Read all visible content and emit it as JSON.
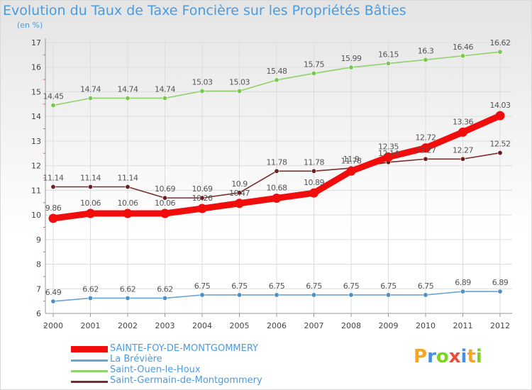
{
  "header": {
    "title": "Evolution du Taux de Taxe Foncière sur les Propriétés Bâties",
    "unit": "(en %)"
  },
  "logo": {
    "letters": [
      "P",
      "r",
      "o",
      "x",
      "i",
      "t",
      "i"
    ],
    "colors": [
      "#f5a623",
      "#4a90e2",
      "#7ed321",
      "#e94e3c",
      "#4a90e2",
      "#f5a623",
      "#7ed321"
    ]
  },
  "chart_data": {
    "type": "line",
    "title": "Evolution du Taux de Taxe Foncière sur les Propriétés Bâties",
    "ylabel": "(en %)",
    "xlabel": "",
    "x": [
      "2000",
      "2001",
      "2002",
      "2003",
      "2004",
      "2005",
      "2006",
      "2007",
      "2008",
      "2009",
      "2010",
      "2011",
      "2012"
    ],
    "ylim": [
      6,
      17
    ],
    "yticks": [
      6,
      7,
      8,
      9,
      10,
      11,
      12,
      13,
      14,
      15,
      16,
      17
    ],
    "grid": true,
    "legend_position": "bottom-left",
    "series": [
      {
        "name": "Saint-Ouen-le-Houx",
        "color": "#8fd16a",
        "marker_color": "#78c850",
        "emphasis": false,
        "values": [
          14.45,
          14.74,
          14.74,
          14.74,
          15.03,
          15.03,
          15.48,
          15.75,
          15.99,
          16.15,
          16.3,
          16.46,
          16.62
        ],
        "labels": [
          "14.45",
          "14.74",
          "14.74",
          "14.74",
          "15.03",
          "15.03",
          "15.48",
          "15.75",
          "15.99",
          "16.15",
          "16.3",
          "16.46",
          "16.62"
        ]
      },
      {
        "name": "Saint-Germain-de-Montgommery",
        "color": "#7a2c2c",
        "marker_color": "#6b1f1f",
        "emphasis": false,
        "values": [
          11.14,
          11.14,
          11.14,
          10.69,
          10.69,
          10.9,
          11.78,
          11.78,
          11.9,
          12.14,
          12.27,
          12.27,
          12.52
        ],
        "labels": [
          "11.14",
          "11.14",
          "11.14",
          "10.69",
          "10.69",
          "10.9",
          "11.78",
          "11.78",
          "11.9",
          "12.14",
          "12.27",
          "12.27",
          "12.52"
        ]
      },
      {
        "name": "SAINTE-FOY-DE-MONTGOMMERY",
        "color": "#f20d0d",
        "marker_color": "#f20d0d",
        "emphasis": true,
        "values": [
          9.86,
          10.06,
          10.06,
          10.06,
          10.26,
          10.47,
          10.68,
          10.89,
          11.78,
          12.35,
          12.72,
          13.36,
          14.03
        ],
        "labels": [
          "9.86",
          "10.06",
          "10.06",
          "10.06",
          "10.26",
          "10.47",
          "10.68",
          "10.89",
          "11.78",
          "12.35",
          "12.72",
          "13.36",
          "14.03"
        ]
      },
      {
        "name": "La Brévière",
        "color": "#6aa3d5",
        "marker_color": "#4f8fc8",
        "emphasis": false,
        "values": [
          6.49,
          6.62,
          6.62,
          6.62,
          6.75,
          6.75,
          6.75,
          6.75,
          6.75,
          6.75,
          6.75,
          6.89,
          6.89
        ],
        "labels": [
          "6.49",
          "6.62",
          "6.62",
          "6.62",
          "6.75",
          "6.75",
          "6.75",
          "6.75",
          "6.75",
          "6.75",
          "6.75",
          "6.89",
          "6.89"
        ]
      }
    ],
    "legend": [
      {
        "name": "SAINTE-FOY-DE-MONTGOMMERY",
        "color": "#f20d0d",
        "emphasis": true
      },
      {
        "name": "La Brévière",
        "color": "#6aa3d5",
        "emphasis": false
      },
      {
        "name": "Saint-Ouen-le-Houx",
        "color": "#8fd16a",
        "emphasis": false
      },
      {
        "name": "Saint-Germain-de-Montgommery",
        "color": "#7a2c2c",
        "emphasis": false
      }
    ]
  }
}
